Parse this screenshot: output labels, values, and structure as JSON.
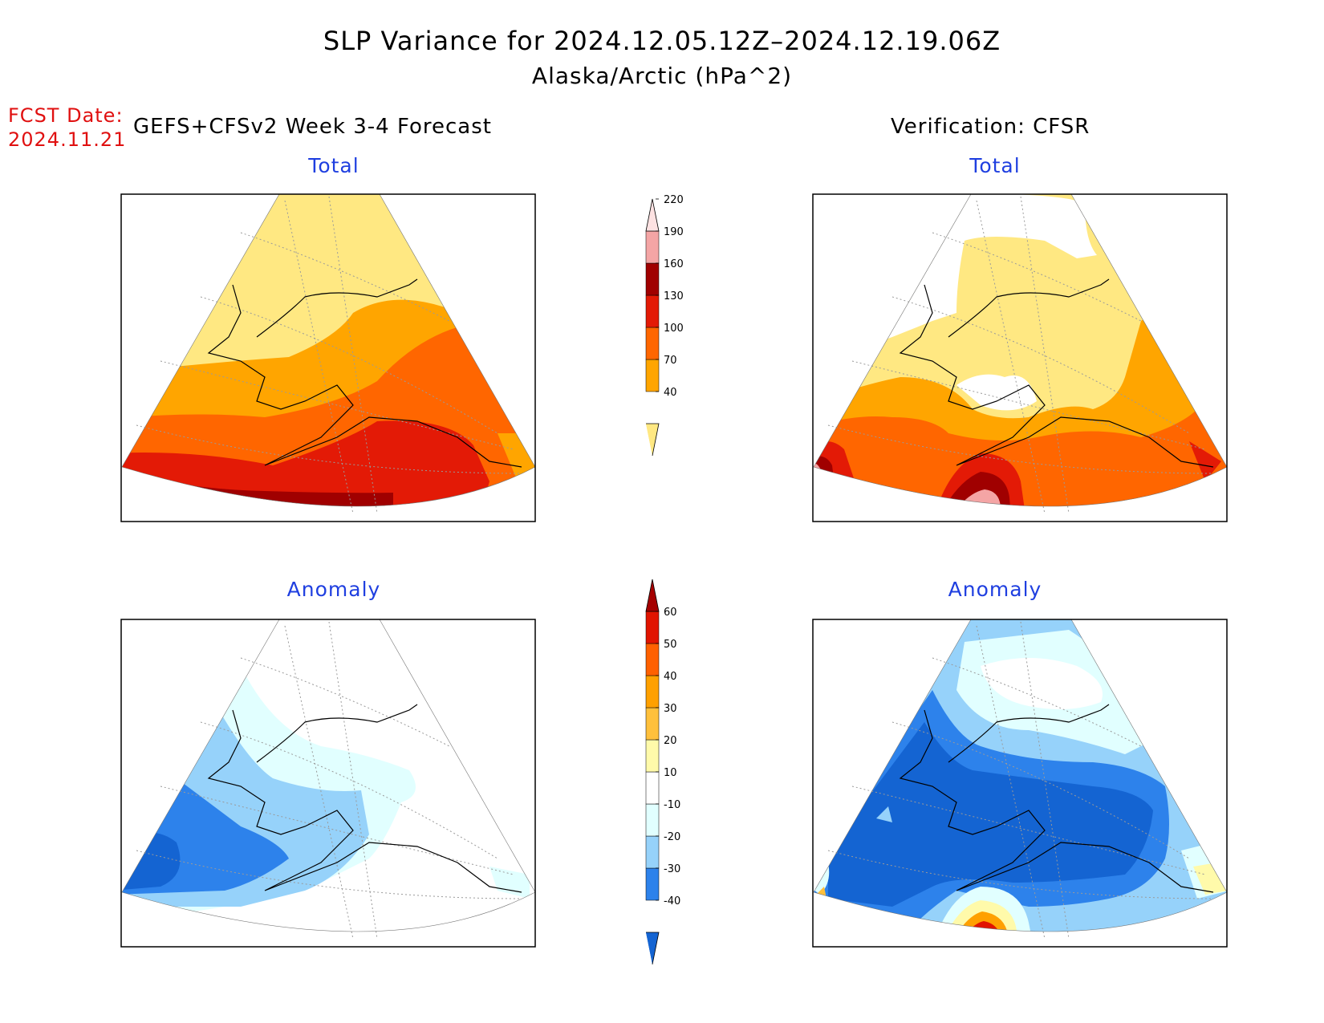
{
  "title": {
    "line1": "SLP Variance for 2024.12.05.12Z–2024.12.19.06Z",
    "line2": "Alaska/Arctic (hPa^2)"
  },
  "fcst": {
    "label": "FCST Date:",
    "date": "2024.11.21"
  },
  "left_header": "GEFS+CFSv2 Week 3-4 Forecast",
  "right_header": "Verification: CFSR",
  "panels": {
    "forecast_total": {
      "title": "Total"
    },
    "verification_total": {
      "title": "Total"
    },
    "forecast_anomaly": {
      "title": "Anomaly"
    },
    "verification_anomaly": {
      "title": "Anomaly"
    }
  },
  "colorbars": {
    "total": {
      "levels": [
        "40",
        "70",
        "100",
        "130",
        "160",
        "190",
        "220"
      ],
      "colors": [
        "#ffe882",
        "#ffa500",
        "#ff6600",
        "#e31a06",
        "#a00000",
        "#f4a5a5",
        "#fde2e2"
      ]
    },
    "anomaly": {
      "levels": [
        "-40",
        "-30",
        "-20",
        "-10",
        "10",
        "20",
        "30",
        "40",
        "50",
        "60"
      ],
      "colors": [
        "#1464d2",
        "#2d82eb",
        "#96d2fa",
        "#e1ffff",
        "#ffffff",
        "#fffaaa",
        "#ffc03c",
        "#ffa000",
        "#ff6000",
        "#e11400",
        "#a50000"
      ]
    }
  }
}
